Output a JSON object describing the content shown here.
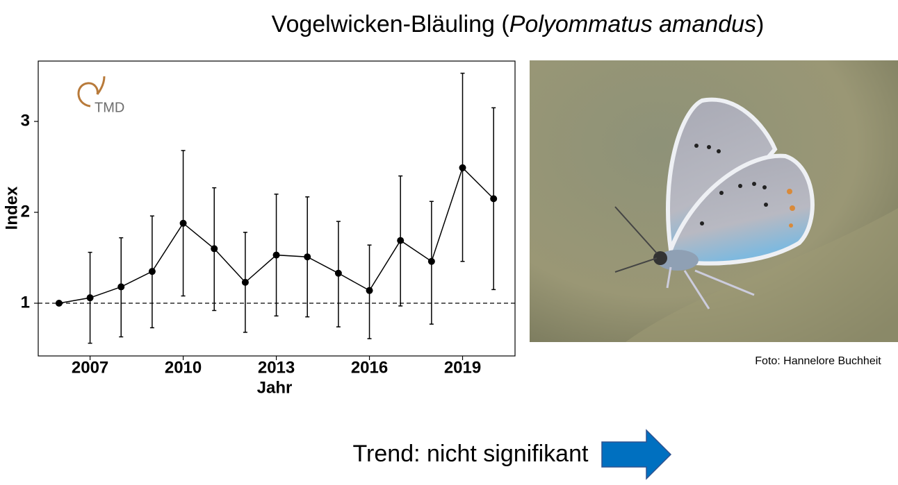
{
  "chart_data": {
    "type": "line",
    "title": [
      "Vogelwicken-Bläuling (",
      "Polyommatus amandus",
      ")"
    ],
    "logo": "TMD",
    "x_label": "Jahr",
    "y_label": "Index",
    "x": [
      2006,
      2007,
      2008,
      2009,
      2010,
      2011,
      2012,
      2013,
      2014,
      2015,
      2016,
      2017,
      2018,
      2019,
      2020
    ],
    "values": [
      1.0,
      1.06,
      1.18,
      1.35,
      1.88,
      1.6,
      1.23,
      1.53,
      1.51,
      1.33,
      1.14,
      1.69,
      1.46,
      2.49,
      2.15
    ],
    "lower": [
      null,
      0.56,
      0.63,
      0.73,
      1.08,
      0.92,
      0.68,
      0.86,
      0.85,
      0.74,
      0.61,
      0.97,
      0.77,
      1.46,
      1.15
    ],
    "upper": [
      null,
      1.56,
      1.72,
      1.96,
      2.68,
      2.27,
      1.78,
      2.2,
      2.17,
      1.9,
      1.64,
      2.4,
      2.12,
      3.53,
      3.15
    ],
    "color": "#000000",
    "reference_line": 1,
    "xlim": [
      2005.33,
      2020.69
    ],
    "xticks": [
      2007,
      2010,
      2013,
      2016,
      2019
    ],
    "ylim": [
      0.42,
      3.664
    ],
    "yticks": [
      1,
      2,
      3
    ]
  },
  "photo_credit": "Foto: Hannelore Buchheit",
  "trend": "Trend: nicht signifikant"
}
